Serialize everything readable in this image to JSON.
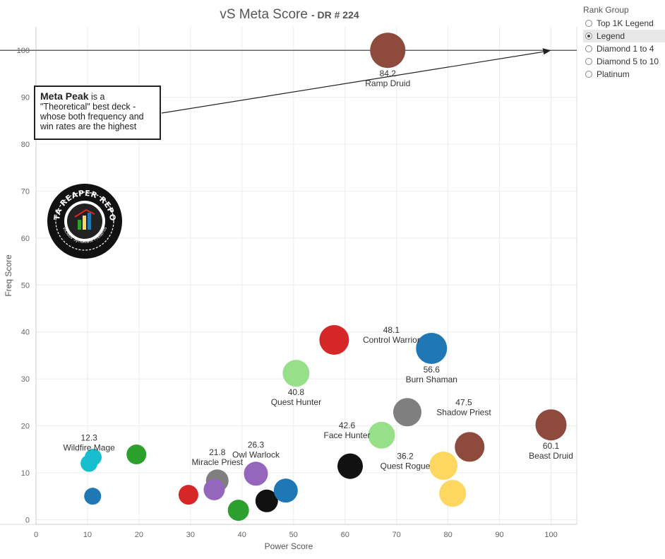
{
  "chart_data": {
    "type": "scatter",
    "title": "vS Meta Score",
    "subtitle": "DR # 224",
    "xlabel": "Power Score",
    "ylabel": "Freq Score",
    "xlim": [
      0,
      105
    ],
    "ylim": [
      -1,
      105
    ],
    "xticks": [
      "0",
      "10",
      "20",
      "30",
      "40",
      "50",
      "60",
      "70",
      "80",
      "90",
      "100"
    ],
    "yticks": [
      "0",
      "10",
      "20",
      "30",
      "40",
      "50",
      "60",
      "70",
      "80",
      "90",
      "100"
    ],
    "grid": true,
    "points": [
      {
        "x": 68.3,
        "y": 100,
        "color": "#8e4a3c",
        "r": 25,
        "label": "Ramp Druid",
        "value": "84.2",
        "lpos": "below"
      },
      {
        "x": 100,
        "y": 20.2,
        "color": "#8e4a3c",
        "r": 22,
        "label": "Beast Druid",
        "value": "60.1",
        "lpos": "below"
      },
      {
        "x": 84.2,
        "y": 15.5,
        "color": "#8e4a3c",
        "r": 21
      },
      {
        "x": 57.9,
        "y": 38.3,
        "color": "#d62728",
        "r": 21,
        "label": "Control Warrior",
        "value": "48.1",
        "lpos": "right"
      },
      {
        "x": 76.8,
        "y": 36.5,
        "color": "#1f77b4",
        "r": 22,
        "label": "Burn Shaman",
        "value": "56.6",
        "lpos": "below"
      },
      {
        "x": 50.5,
        "y": 31.2,
        "color": "#98df8a",
        "r": 19,
        "label": "Quest Hunter",
        "value": "40.8",
        "lpos": "below"
      },
      {
        "x": 72.1,
        "y": 22.9,
        "color": "#7f7f7f",
        "r": 20,
        "label": "Shadow Priest",
        "value": "47.5",
        "lpos": "right"
      },
      {
        "x": 67.1,
        "y": 18.0,
        "color": "#98df8a",
        "r": 19,
        "label": "Face Hunter",
        "value": "42.6",
        "lpos": "left"
      },
      {
        "x": 61.0,
        "y": 11.4,
        "color": "#111111",
        "r": 18,
        "label": "Quest Rogue",
        "value": "36.2",
        "lpos": "right"
      },
      {
        "x": 79.1,
        "y": 11.5,
        "color": "#fdd75f",
        "r": 20
      },
      {
        "x": 80.9,
        "y": 5.6,
        "color": "#fdd75f",
        "r": 19
      },
      {
        "x": 10.3,
        "y": 12.0,
        "color": "#17becf",
        "r": 12,
        "label": "Wildfire Mage",
        "value": "12.3",
        "lpos": "above"
      },
      {
        "x": 11.1,
        "y": 13.3,
        "color": "#17becf",
        "r": 12
      },
      {
        "x": 19.5,
        "y": 13.9,
        "color": "#2ca02c",
        "r": 14
      },
      {
        "x": 11.0,
        "y": 5.0,
        "color": "#1f77b4",
        "r": 12
      },
      {
        "x": 29.6,
        "y": 5.3,
        "color": "#d62728",
        "r": 14
      },
      {
        "x": 35.2,
        "y": 8.3,
        "color": "#7f7f7f",
        "r": 16,
        "label": "Miracle Priest",
        "value": "21.8",
        "lpos": "above"
      },
      {
        "x": 34.6,
        "y": 6.4,
        "color": "#9467bd",
        "r": 15
      },
      {
        "x": 42.7,
        "y": 9.8,
        "color": "#9467bd",
        "r": 17,
        "label": "Owl Warlock",
        "value": "26.3",
        "lpos": "above"
      },
      {
        "x": 39.3,
        "y": 2.0,
        "color": "#2ca02c",
        "r": 15
      },
      {
        "x": 44.8,
        "y": 4.0,
        "color": "#111111",
        "r": 16
      },
      {
        "x": 48.5,
        "y": 6.2,
        "color": "#1f77b4",
        "r": 17
      }
    ],
    "reference_line": {
      "y": 100
    }
  },
  "annotation": {
    "bold": "Meta Peak",
    "text": "is a \"Theoretical\" best deck - whose both frequency and win rates are the highest"
  },
  "logo": {
    "top_text": "DATA REAPER REPORT",
    "bottom_text": "Vicious Syndicate Presents"
  },
  "legend": {
    "title": "Rank Group",
    "items": [
      "Top 1K Legend",
      "Legend",
      "Diamond 1 to 4",
      "Diamond 5 to 10",
      "Platinum"
    ],
    "selected": "Legend"
  }
}
